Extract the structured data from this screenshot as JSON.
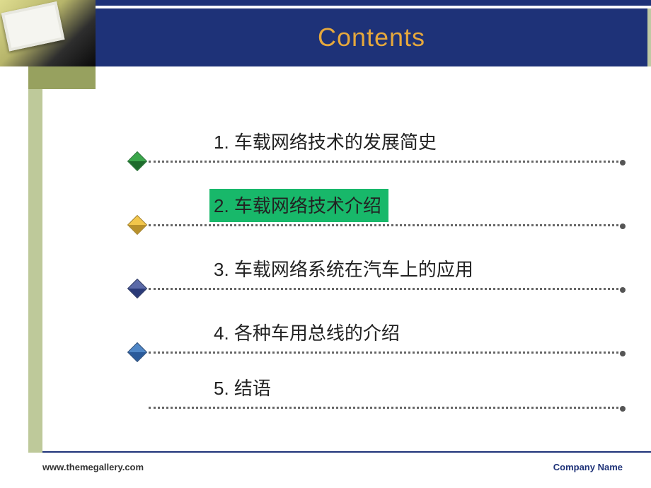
{
  "header": {
    "title": "Contents",
    "title_color": "#e6a83c",
    "bar_color": "#1e3278",
    "accent_color": "#bfc9a3"
  },
  "sidebar": {
    "olive_dark": "#97a15f",
    "olive_light": "#bec99a"
  },
  "toc": {
    "items": [
      {
        "num": "1.",
        "text": "车载网络技术的发展简史",
        "bullet_style": "d-green",
        "highlighted": false
      },
      {
        "num": "2.",
        "text": "车载网络技术介绍",
        "bullet_style": "d-yellow",
        "highlighted": true
      },
      {
        "num": "3.",
        "text": "车载网络系统在汽车上的应用",
        "bullet_style": "d-blue-dark",
        "highlighted": false
      },
      {
        "num": "4.",
        "text": "各种车用总线的介绍",
        "bullet_style": "d-blue",
        "highlighted": false
      },
      {
        "num": "5.",
        "text": "结语",
        "bullet_style": "",
        "highlighted": false
      }
    ],
    "highlight_color": "#18b86a",
    "text_color": "#222222",
    "dot_color": "#666666",
    "font_size": 26
  },
  "footer": {
    "left": "www.themegallery.com",
    "right": "Company Name",
    "line_color": "#1e3278"
  }
}
